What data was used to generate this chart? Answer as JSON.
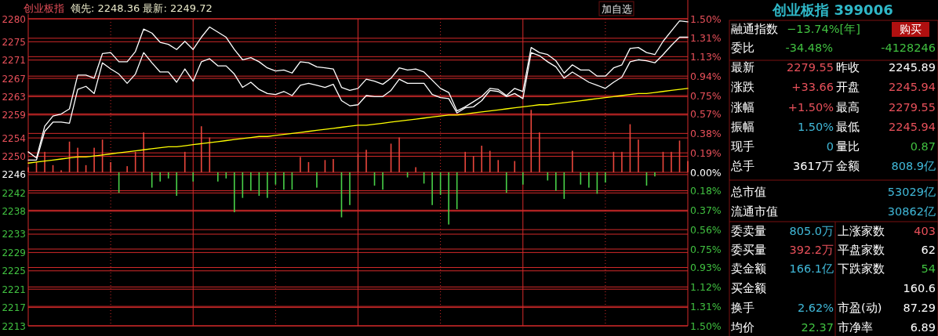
{
  "chart_data": [
    {
      "type": "line",
      "title": "创业板指",
      "subtitle": "领先: 2248.36 最新: 2249.72",
      "annotations": [
        "加自选"
      ],
      "grid": true,
      "categories": [
        null,
        null,
        null,
        null,
        null,
        null,
        null,
        null,
        null,
        null,
        null,
        null,
        null,
        null,
        null,
        null,
        null,
        null,
        null,
        null,
        null,
        null,
        null,
        null,
        null,
        null,
        null,
        null,
        null,
        null,
        null,
        null,
        null,
        null,
        null,
        null,
        null,
        null,
        null,
        null,
        null,
        null,
        null,
        null,
        null,
        null,
        null,
        null,
        null,
        null,
        null,
        null,
        null,
        null,
        null,
        null,
        null,
        null,
        null,
        null,
        null,
        null,
        null,
        null,
        null,
        null,
        null,
        null,
        null,
        null,
        null,
        null,
        null,
        null,
        null,
        null,
        null,
        null,
        null,
        null,
        null
      ],
      "ylim": [
        2213,
        2280
      ],
      "yticks": [
        2280,
        2275,
        2271,
        2267,
        2263,
        2259,
        2254,
        2250,
        2246,
        2242,
        2238,
        2233,
        2229,
        2225,
        2221,
        2217,
        2213
      ],
      "y2lim": [
        -1.5,
        1.5
      ],
      "y2ticks": [
        {
          "value": 1.5,
          "label": "1.50%"
        },
        {
          "value": 1.31,
          "label": "1.31%"
        },
        {
          "value": 1.13,
          "label": "1.13%"
        },
        {
          "value": 0.94,
          "label": "0.94%"
        },
        {
          "value": 0.75,
          "label": "0.75%"
        },
        {
          "value": 0.57,
          "label": "0.57%"
        },
        {
          "value": 0.38,
          "label": "0.38%"
        },
        {
          "value": 0.19,
          "label": "0.19%"
        },
        {
          "value": 0,
          "label": "0.00%"
        },
        {
          "value": -0.18,
          "label": "0.18%"
        },
        {
          "value": -0.37,
          "label": "0.37%"
        },
        {
          "value": -0.56,
          "label": "0.56%"
        },
        {
          "value": -0.75,
          "label": "0.75%"
        },
        {
          "value": -0.93,
          "label": "0.93%"
        },
        {
          "value": -1.12,
          "label": "1.12%"
        },
        {
          "value": -1.31,
          "label": "1.31%"
        },
        {
          "value": -1.5,
          "label": "1.50%"
        }
      ],
      "series": [
        {
          "type": "bar",
          "axis": "y2",
          "color": "#e8463c",
          "values": [
            0.05,
            0.1,
            0.2,
            0.07,
            0.02,
            0.3,
            0.24,
            0.07,
            0.24,
            0.32,
            0.1,
            null,
            0.06,
            0.2,
            0.39,
            null,
            null,
            null,
            null,
            0.2,
            null,
            0.45,
            0.34,
            null,
            null,
            null,
            null,
            null,
            null,
            null,
            null,
            null,
            null,
            0.15,
            0.1,
            null,
            0.12,
            0.13,
            null,
            null,
            0.18,
            0.22,
            null,
            null,
            0.28,
            0.34,
            null,
            0.05,
            null,
            null,
            null,
            null,
            null,
            0.2,
            0.16,
            0.26,
            0.21,
            0.12,
            null,
            0.11,
            null,
            0.61,
            0.39,
            null,
            null,
            null,
            0.21,
            null,
            null,
            null,
            null,
            0.2,
            0.2,
            0.47,
            0.32,
            null,
            null,
            0.2,
            0.2,
            0.31,
            0.11
          ]
        },
        {
          "type": "bar",
          "axis": "y2",
          "color": "#48d048",
          "values": [
            null,
            null,
            null,
            null,
            null,
            null,
            null,
            null,
            null,
            null,
            null,
            -0.2,
            null,
            null,
            null,
            -0.15,
            -0.09,
            -0.06,
            -0.23,
            null,
            -0.09,
            null,
            null,
            -0.09,
            -0.06,
            -0.39,
            -0.25,
            -0.18,
            -0.23,
            -0.25,
            -0.12,
            -0.17,
            -0.17,
            null,
            null,
            -0.15,
            null,
            null,
            -0.44,
            -0.32,
            null,
            null,
            -0.13,
            -0.17,
            null,
            null,
            -0.05,
            null,
            -0.11,
            -0.32,
            -0.22,
            -0.51,
            -0.36,
            null,
            null,
            null,
            null,
            null,
            -0.2,
            null,
            -0.12,
            null,
            null,
            -0.08,
            -0.18,
            -0.26,
            null,
            -0.12,
            -0.15,
            -0.21,
            -0.1,
            null,
            null,
            null,
            null,
            -0.13,
            -0.04,
            null,
            null,
            null,
            null
          ]
        },
        {
          "axis": "y2",
          "color": "#ffffff",
          "values": [
            0.2,
            0.14,
            0.45,
            0.55,
            0.57,
            0.62,
            0.95,
            0.95,
            0.92,
            1.16,
            1.17,
            1.08,
            1.08,
            1.18,
            1.4,
            1.36,
            1.27,
            1.25,
            1.2,
            1.28,
            1.2,
            1.32,
            1.42,
            1.37,
            1.32,
            1.2,
            1.1,
            1.12,
            1.08,
            1.02,
            0.99,
            1.0,
            0.97,
            1.08,
            1.07,
            1.03,
            1.02,
            1.01,
            0.83,
            0.8,
            0.82,
            0.91,
            0.89,
            0.86,
            0.92,
            1.02,
            1.0,
            1.01,
            0.98,
            0.9,
            0.82,
            0.78,
            0.6,
            0.64,
            0.69,
            0.74,
            0.82,
            0.81,
            0.75,
            0.82,
            0.79,
            1.22,
            1.17,
            1.15,
            1.09,
            0.97,
            1.05,
            1.0,
            1.0,
            0.94,
            0.94,
            1.02,
            1.05,
            1.21,
            1.22,
            1.17,
            1.15,
            1.28,
            1.38,
            1.48,
            1.47
          ]
        },
        {
          "axis": "y2",
          "color": "#ffffff",
          "values": [
            0.12,
            0.12,
            0.4,
            0.49,
            0.49,
            0.48,
            0.81,
            0.84,
            0.77,
            1.07,
            1.01,
            0.96,
            0.87,
            0.96,
            1.17,
            1.07,
            0.98,
            0.98,
            0.88,
            1.01,
            0.89,
            1.08,
            1.11,
            1.04,
            1.04,
            0.96,
            0.83,
            0.88,
            0.81,
            0.77,
            0.76,
            0.79,
            0.75,
            0.85,
            0.87,
            0.85,
            0.83,
            0.86,
            0.7,
            0.65,
            0.66,
            0.75,
            0.74,
            0.74,
            0.8,
            0.91,
            0.87,
            0.87,
            0.87,
            0.76,
            0.73,
            0.72,
            0.58,
            0.63,
            0.64,
            0.7,
            0.8,
            0.79,
            0.74,
            0.77,
            0.72,
            1.17,
            1.14,
            1.08,
            1.03,
            0.92,
            0.98,
            0.93,
            0.88,
            0.85,
            0.82,
            0.88,
            0.93,
            1.08,
            1.1,
            1.09,
            1.07,
            1.15,
            1.24,
            1.32,
            1.32
          ]
        },
        {
          "axis": "y2",
          "color": "#ffff00",
          "values": [
            0.09,
            0.1,
            0.11,
            0.12,
            0.13,
            0.14,
            0.15,
            0.15,
            0.16,
            0.17,
            0.18,
            0.19,
            0.2,
            0.21,
            0.22,
            0.23,
            0.24,
            0.25,
            0.25,
            0.26,
            0.27,
            0.28,
            0.29,
            0.3,
            0.31,
            0.32,
            0.33,
            0.34,
            0.35,
            0.35,
            0.36,
            0.37,
            0.38,
            0.39,
            0.4,
            0.41,
            0.42,
            0.43,
            0.44,
            0.45,
            0.46,
            0.46,
            0.47,
            0.48,
            0.49,
            0.5,
            0.51,
            0.52,
            0.53,
            0.54,
            0.55,
            0.56,
            0.56,
            0.57,
            0.58,
            0.59,
            0.6,
            0.61,
            0.62,
            0.63,
            0.64,
            0.65,
            0.66,
            0.66,
            0.67,
            0.68,
            0.69,
            0.7,
            0.71,
            0.72,
            0.73,
            0.74,
            0.75,
            0.76,
            0.77,
            0.77,
            0.78,
            0.79,
            0.8,
            0.81,
            0.82
          ]
        }
      ]
    },
    {
      "type": "other",
      "title": "创业板指 399006",
      "annotations": [
        "融通指数",
        "−13.74%[年]",
        "购买",
        "委比",
        "-34.48%",
        "-4128246",
        "最新",
        "2279.55",
        "昨收",
        "2245.89",
        "涨跌",
        "+33.66",
        "开盘",
        "2245.94",
        "涨幅",
        "+1.50%",
        "最高",
        "2279.55",
        "振幅",
        "1.50%",
        "最低",
        "2245.94",
        "现手",
        "0",
        "量比",
        "0.87",
        "总手",
        "3617万",
        "金额",
        "808.9亿",
        "总市值",
        "53029亿",
        "流通市值",
        "30862亿",
        "委卖量",
        "805.0万",
        "上涨家数",
        "403",
        "委买量",
        "392.2万",
        "平盘家数",
        "62",
        "卖金额",
        "166.1亿",
        "下跌家数",
        "54",
        "买金额",
        "160.6",
        "换手",
        "2.62%",
        "市盈(动)",
        "87.29",
        "均价",
        "22.37",
        "市净率",
        "6.89"
      ]
    }
  ]
}
